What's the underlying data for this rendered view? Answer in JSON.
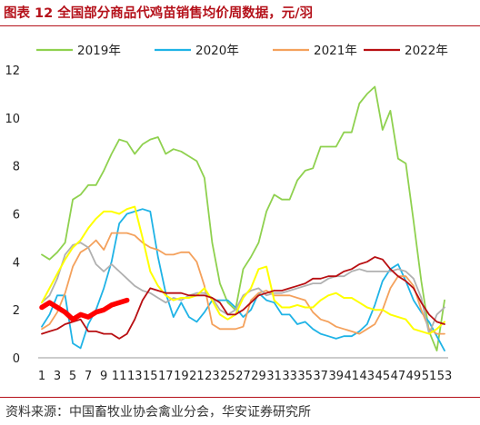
{
  "figure_title": "图表 12 全国部分商品代鸡苗销售均价周数据，元/羽",
  "source_note": "资料来源：中国畜牧业协会禽业分会，华安证券研究所",
  "chart_data": {
    "type": "line",
    "title": "",
    "xlabel": "",
    "ylabel": "",
    "ylim": [
      0,
      12
    ],
    "yticks": [
      "0",
      "2",
      "4",
      "6",
      "8",
      "10",
      "12"
    ],
    "x_tick_labels": [
      "1",
      "3",
      "5",
      "7",
      "9",
      "11",
      "13",
      "15",
      "17",
      "19",
      "21",
      "23",
      "25",
      "27",
      "29",
      "31",
      "33",
      "35",
      "37",
      "39",
      "41",
      "43",
      "45",
      "47",
      "49",
      "51",
      "53"
    ],
    "grid": false,
    "legend_position": "top",
    "series": [
      {
        "name": "2019年",
        "color": "#8fd14f",
        "stroke": 1.8,
        "values": [
          4.3,
          4.1,
          4.4,
          4.8,
          6.6,
          6.8,
          7.2,
          7.2,
          7.8,
          8.5,
          9.1,
          9.0,
          8.5,
          8.9,
          9.1,
          9.2,
          8.5,
          8.7,
          8.6,
          8.4,
          8.2,
          7.5,
          4.8,
          3.1,
          2.3,
          2.0,
          3.7,
          4.2,
          4.8,
          6.1,
          6.8,
          6.6,
          6.6,
          7.4,
          7.8,
          7.9,
          8.8,
          8.8,
          8.8,
          9.4,
          9.4,
          10.6,
          11.0,
          11.3,
          9.5,
          10.3,
          8.3,
          8.1,
          5.7,
          3.2,
          1.1,
          0.3,
          2.4
        ]
      },
      {
        "name": "2020年",
        "color": "#1fb3e6",
        "stroke": 1.8,
        "values": [
          1.3,
          1.8,
          2.6,
          2.6,
          0.6,
          0.4,
          1.4,
          2.0,
          2.9,
          4.0,
          5.6,
          6.0,
          6.1,
          6.2,
          6.1,
          4.2,
          2.7,
          1.7,
          2.3,
          1.7,
          1.5,
          1.9,
          2.4,
          2.4,
          2.4,
          2.1,
          1.7,
          2.0,
          2.7,
          2.4,
          2.3,
          1.8,
          1.8,
          1.4,
          1.5,
          1.2,
          1.0,
          0.9,
          0.8,
          0.9,
          0.9,
          1.1,
          1.4,
          2.2,
          3.2,
          3.7,
          3.9,
          3.2,
          2.4,
          1.9,
          1.5,
          0.9,
          0.3
        ]
      },
      {
        "name": "2021年",
        "color": "#f4a15c",
        "stroke": 1.8,
        "values": [
          1.2,
          1.4,
          1.9,
          2.7,
          3.8,
          4.4,
          4.6,
          4.9,
          4.5,
          5.2,
          5.2,
          5.2,
          5.1,
          4.8,
          4.6,
          4.5,
          4.3,
          4.3,
          4.4,
          4.4,
          4.0,
          3.0,
          1.4,
          1.2,
          1.2,
          1.2,
          1.3,
          2.4,
          2.7,
          2.8,
          2.6,
          2.6,
          2.6,
          2.5,
          2.4,
          1.9,
          1.6,
          1.5,
          1.3,
          1.2,
          1.1,
          1.0,
          1.2,
          1.4,
          2.0,
          2.9,
          3.4,
          3.4,
          3.0,
          2.0,
          1.2,
          1.0,
          1.0
        ]
      },
      {
        "name": "",
        "color": "#b0b0b0",
        "stroke": 1.8,
        "values": [
          2.3,
          2.6,
          3.3,
          4.3,
          4.7,
          4.8,
          4.6,
          3.9,
          3.6,
          3.9,
          3.6,
          3.3,
          3.0,
          2.8,
          2.7,
          2.5,
          2.3,
          2.5,
          2.4,
          2.6,
          2.7,
          2.7,
          2.5,
          2.0,
          1.8,
          2.0,
          2.6,
          2.8,
          2.9,
          2.6,
          2.7,
          2.7,
          2.8,
          2.9,
          3.0,
          3.1,
          3.1,
          3.3,
          3.4,
          3.4,
          3.6,
          3.7,
          3.6,
          3.6,
          3.6,
          3.6,
          3.7,
          3.6,
          3.3,
          2.5,
          1.0,
          1.8,
          2.1
        ]
      },
      {
        "name": "",
        "color": "#ffff00",
        "stroke": 2.0,
        "values": [
          2.3,
          2.9,
          3.5,
          4.1,
          4.6,
          4.9,
          5.4,
          5.8,
          6.1,
          6.1,
          6.0,
          6.2,
          6.3,
          5.0,
          3.6,
          3.0,
          2.6,
          2.4,
          2.5,
          2.5,
          2.6,
          2.9,
          2.4,
          1.8,
          1.6,
          1.8,
          2.5,
          2.9,
          3.7,
          3.8,
          2.4,
          2.1,
          2.1,
          2.2,
          2.1,
          2.1,
          2.4,
          2.6,
          2.7,
          2.5,
          2.5,
          2.3,
          2.1,
          2.0,
          2.0,
          1.8,
          1.7,
          1.6,
          1.2,
          1.1,
          1.0,
          1.2,
          1.5
        ]
      },
      {
        "name": "2022年",
        "color": "#b80f12",
        "stroke": 1.8,
        "values": [
          1.0,
          1.1,
          1.2,
          1.4,
          1.5,
          1.6,
          1.1,
          1.1,
          1.0,
          1.0,
          0.8,
          1.0,
          1.6,
          2.4,
          2.9,
          2.8,
          2.7,
          2.7,
          2.7,
          2.6,
          2.6,
          2.6,
          2.5,
          2.3,
          1.8,
          1.8,
          2.0,
          2.3,
          2.6,
          2.7,
          2.8,
          2.8,
          2.9,
          3.0,
          3.1,
          3.3,
          3.3,
          3.4,
          3.4,
          3.6,
          3.7,
          3.9,
          4.0,
          4.2,
          4.1,
          3.7,
          3.4,
          3.2,
          2.9,
          2.3,
          1.8,
          1.5,
          1.4
        ]
      },
      {
        "name": "",
        "color": "#ff0000",
        "stroke": 5.5,
        "values": [
          2.1,
          2.3,
          2.1,
          1.9,
          1.6,
          1.8,
          1.7,
          1.9,
          2.0,
          2.2,
          2.3,
          2.4
        ]
      }
    ]
  }
}
